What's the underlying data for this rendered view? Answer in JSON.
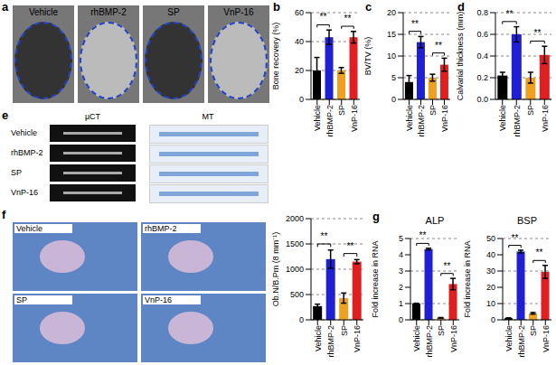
{
  "chart_data": [
    {
      "panel": "b",
      "type": "bar",
      "ylabel": "Bone recovery (%)",
      "categories": [
        "Vehicle",
        "rhBMP-2",
        "SP",
        "VnP-16"
      ],
      "values": [
        20,
        43,
        20,
        43
      ],
      "errors": [
        9,
        5,
        2,
        4
      ],
      "colors": [
        "#000000",
        "#1f1fd6",
        "#f0a020",
        "#e02020"
      ],
      "ylim": [
        0,
        60
      ],
      "yticks": [
        0,
        20,
        40,
        60
      ],
      "grid": true,
      "significance": [
        {
          "from": 0,
          "to": 1,
          "label": "**"
        },
        {
          "from": 2,
          "to": 3,
          "label": "**"
        }
      ]
    },
    {
      "panel": "c",
      "type": "bar",
      "ylabel": "BV/TV (%)",
      "categories": [
        "Vehicle",
        "rhBMP-2",
        "SP",
        "VnP-16"
      ],
      "values": [
        4,
        13.2,
        5,
        8
      ],
      "errors": [
        1.5,
        1.3,
        0.8,
        1.5
      ],
      "colors": [
        "#000000",
        "#1f1fd6",
        "#f0a020",
        "#e02020"
      ],
      "ylim": [
        0,
        20
      ],
      "yticks": [
        0,
        5,
        10,
        15,
        20
      ],
      "grid": true,
      "significance": [
        {
          "from": 0,
          "to": 1,
          "label": "**"
        },
        {
          "from": 2,
          "to": 3,
          "label": "**"
        }
      ]
    },
    {
      "panel": "d",
      "type": "bar",
      "ylabel": "Calvarial thickness (mm)",
      "categories": [
        "Vehicle",
        "rhBMP-2",
        "SP",
        "VnP-16"
      ],
      "values": [
        0.22,
        0.6,
        0.2,
        0.41
      ],
      "errors": [
        0.03,
        0.07,
        0.05,
        0.08
      ],
      "colors": [
        "#000000",
        "#1f1fd6",
        "#f0a020",
        "#e02020"
      ],
      "ylim": [
        0,
        0.8
      ],
      "yticks": [
        {
          "value": 0,
          "label": "0.0"
        },
        0.2,
        0.4,
        0.6,
        0.8
      ],
      "grid": true,
      "significance": [
        {
          "from": 0,
          "to": 1,
          "label": "**"
        },
        {
          "from": 2,
          "to": 3,
          "label": "**"
        }
      ]
    },
    {
      "type": "bar",
      "ylabel": "Ob.N/B.Pm (8 mm⁻¹)",
      "categories": [
        "Vehicle",
        "rhBMP-2",
        "SP",
        "VnP-16"
      ],
      "values": [
        270,
        1200,
        430,
        1150
      ],
      "errors": [
        40,
        180,
        100,
        40
      ],
      "colors": [
        "#000000",
        "#1f1fd6",
        "#f0a020",
        "#e02020"
      ],
      "ylim": [
        0,
        2000
      ],
      "yticks": [
        0,
        500,
        1000,
        1500,
        2000
      ],
      "grid": true,
      "significance": [
        {
          "from": 0,
          "to": 1,
          "label": "**"
        },
        {
          "from": 2,
          "to": 3,
          "label": "**"
        }
      ]
    },
    {
      "panel": "g",
      "type": "bar",
      "title": "ALP",
      "ylabel": "Fold increase in RNA",
      "categories": [
        "Vehicle",
        "rhBMP-2",
        "SP",
        "VnP-16"
      ],
      "values": [
        1,
        4.35,
        0.12,
        2.2
      ],
      "errors": [
        0.02,
        0.05,
        0.02,
        0.35
      ],
      "colors": [
        "#000000",
        "#1f1fd6",
        "#f0a020",
        "#e02020"
      ],
      "ylim": [
        0,
        5
      ],
      "yticks": [
        0,
        1,
        2,
        3,
        4,
        5
      ],
      "grid": true,
      "significance": [
        {
          "from": 0,
          "to": 1,
          "label": "**"
        },
        {
          "from": 2,
          "to": 3,
          "label": "**"
        }
      ]
    },
    {
      "type": "bar",
      "title": "BSP",
      "ylabel": "Fold increase in RNA",
      "categories": [
        "Vehicle",
        "rhBMP-2",
        "SP",
        "VnP-16"
      ],
      "values": [
        1,
        42,
        4,
        29.5
      ],
      "errors": [
        0.2,
        0.8,
        0.5,
        4
      ],
      "colors": [
        "#000000",
        "#1f1fd6",
        "#f0a020",
        "#e02020"
      ],
      "ylim": [
        0,
        50
      ],
      "yticks": [
        0,
        10,
        20,
        30,
        40,
        50
      ],
      "grid": true,
      "significance": [
        {
          "from": 0,
          "to": 1,
          "label": "**"
        },
        {
          "from": 2,
          "to": 3,
          "label": "**"
        }
      ]
    }
  ],
  "images": {
    "a": {
      "panel": "a",
      "titles": [
        "Vehicle",
        "rhBMP-2",
        "SP",
        "VnP-16"
      ]
    },
    "e": {
      "panel": "e",
      "columns": [
        "µCT",
        "MT"
      ],
      "rows": [
        "Vehicle",
        "rhBMP-2",
        "SP",
        "VnP-16"
      ]
    },
    "f": {
      "panel": "f",
      "titles": [
        "Vehicle",
        "rhBMP-2",
        "SP",
        "VnP-16"
      ]
    }
  }
}
